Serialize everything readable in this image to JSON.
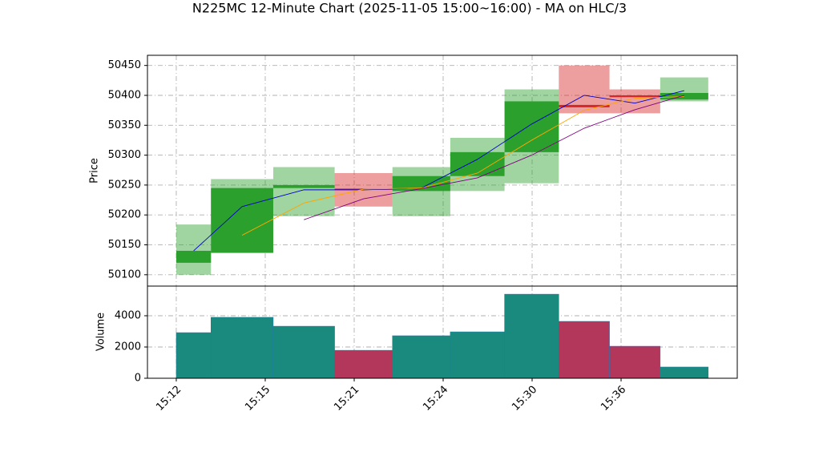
{
  "chart_data": {
    "type": "candlestick",
    "title": "N225MC 12-Minute Chart (2025-11-05 15:00~16:00) - MA on HLC/3",
    "y_label": "Price",
    "y2_label": "Volume",
    "bins": [
      0,
      0.39,
      1.09,
      1.78,
      2.43,
      3.08,
      3.69,
      4.3,
      4.87,
      5.44,
      5.98
    ],
    "open": [
      50120,
      50137,
      50245,
      50244,
      50240,
      50265,
      50305,
      50384,
      50400,
      50393
    ],
    "high": [
      50184,
      50260,
      50280,
      50270,
      50280,
      50329,
      50410,
      50450,
      50410,
      50430
    ],
    "low": [
      50100,
      50136,
      50198,
      50214,
      50198,
      50240,
      50253,
      50370,
      50370,
      50390
    ],
    "close": [
      50140,
      50245,
      50250,
      50242,
      50265,
      50305,
      50390,
      50380,
      50397,
      50404
    ],
    "volume": [
      2920,
      3900,
      3330,
      1790,
      2720,
      2970,
      5380,
      3640,
      2050,
      720
    ],
    "up_color": "#2ca02c",
    "down_color": "#d62728",
    "volume_up_color": "#1a8a7e",
    "volume_down_color": "#b3365b",
    "ma": [
      {
        "color": "#0000cc",
        "values": [
          50140,
          50214,
          50242,
          50242,
          50245,
          50293,
          50352,
          50400,
          50387,
          50408
        ]
      },
      {
        "color": "#ffa500",
        "values": [
          null,
          50166,
          50220,
          50243,
          50245,
          50270,
          50325,
          50375,
          50395,
          50398
        ]
      },
      {
        "color": "#800080",
        "values": [
          null,
          null,
          50192,
          50227,
          50244,
          50262,
          50300,
          50345,
          50376,
          50400
        ]
      }
    ],
    "xlim": [
      -0.324,
      6.306
    ],
    "xticks": [
      {
        "value": 0,
        "label": "15:12"
      },
      {
        "value": 1,
        "label": "15:15"
      },
      {
        "value": 2,
        "label": "15:21"
      },
      {
        "value": 3,
        "label": "15:24"
      },
      {
        "value": 4,
        "label": "15:30"
      },
      {
        "value": 5,
        "label": "15:36"
      }
    ],
    "ylim": [
      50081,
      50467
    ],
    "yticks": [
      50100,
      50150,
      50200,
      50250,
      50300,
      50350,
      50400,
      50450
    ],
    "y2lim": [
      0,
      5897
    ],
    "y2ticks": [
      0,
      2000,
      4000
    ],
    "grid": true
  }
}
